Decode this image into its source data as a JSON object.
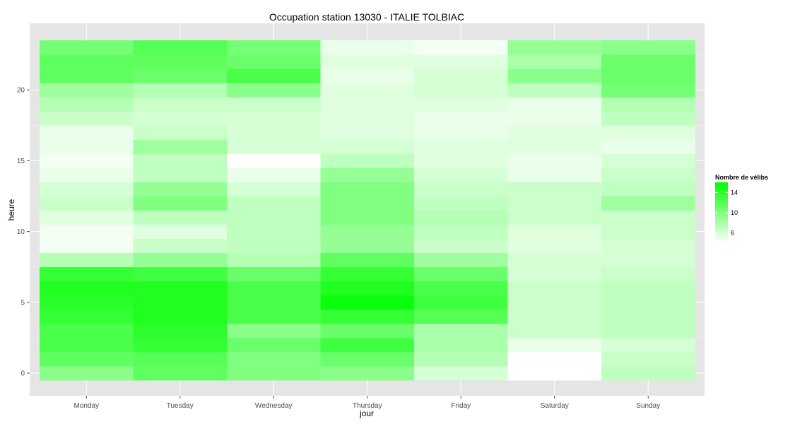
{
  "chart_data": {
    "type": "heatmap",
    "title": "Occupation station 13030 - ITALIE TOLBIAC",
    "xlabel": "jour",
    "ylabel": "heure",
    "x": [
      "Monday",
      "Tuesday",
      "Wednesday",
      "Thursday",
      "Friday",
      "Saturday",
      "Sunday"
    ],
    "y": [
      0,
      1,
      2,
      3,
      4,
      5,
      6,
      7,
      8,
      9,
      10,
      11,
      12,
      13,
      14,
      15,
      16,
      17,
      18,
      19,
      20,
      21,
      22,
      23
    ],
    "y_ticks": [
      0,
      5,
      10,
      15,
      20
    ],
    "ylim": [
      -0.5,
      23.5
    ],
    "grid": true,
    "legend": {
      "title": "Nombre de vélibs",
      "position": "right",
      "ticks": [
        6,
        10,
        14
      ],
      "range": [
        4,
        16
      ]
    },
    "color_low": "#ffffff",
    "color_high": "#00ff00",
    "values": [
      [
        9.5,
        11.5,
        10,
        9.5,
        6,
        4,
        7
      ],
      [
        11.5,
        12,
        10,
        11,
        7.5,
        4,
        6.5
      ],
      [
        12.5,
        13.5,
        11,
        13,
        8,
        5,
        6
      ],
      [
        12.5,
        14,
        9.5,
        11,
        8,
        6.5,
        7
      ],
      [
        13.5,
        14.5,
        12.5,
        13.5,
        12,
        6.5,
        7
      ],
      [
        14,
        14.5,
        12.5,
        15.5,
        13,
        6.5,
        7
      ],
      [
        14.5,
        14.5,
        12.5,
        14.5,
        12.5,
        6.5,
        7
      ],
      [
        13.5,
        13,
        11,
        13.5,
        11,
        6,
        6.5
      ],
      [
        7.5,
        9,
        7.5,
        11.5,
        8.5,
        6,
        6
      ],
      [
        4.5,
        6.5,
        7,
        9,
        6.5,
        5.5,
        6
      ],
      [
        4.5,
        5.5,
        7,
        9,
        7,
        5.5,
        6.5
      ],
      [
        5.5,
        7,
        7,
        10,
        7.5,
        6.5,
        6.5
      ],
      [
        6.5,
        10,
        7,
        10,
        7,
        6.5,
        8.5
      ],
      [
        6,
        9,
        6,
        10,
        6.5,
        6.5,
        7
      ],
      [
        5,
        7,
        5,
        9,
        6,
        5,
        6.5
      ],
      [
        4.5,
        7,
        4,
        7,
        5.5,
        5,
        6
      ],
      [
        5,
        8.5,
        6,
        6,
        5.5,
        5.5,
        5
      ],
      [
        5,
        6.5,
        6,
        5.5,
        5,
        5.5,
        5.5
      ],
      [
        6.5,
        6,
        6,
        5.5,
        5,
        5,
        7
      ],
      [
        7.5,
        6.5,
        6.5,
        5.5,
        5.5,
        5,
        7.5
      ],
      [
        8.5,
        7.5,
        9.5,
        5.5,
        6,
        7,
        10.5
      ],
      [
        11.5,
        11,
        12.5,
        5,
        6,
        9.5,
        11
      ],
      [
        11.5,
        11.5,
        11,
        5.5,
        5.5,
        8,
        11
      ],
      [
        10.5,
        12,
        10.5,
        5,
        4.5,
        9,
        9.5
      ]
    ]
  }
}
